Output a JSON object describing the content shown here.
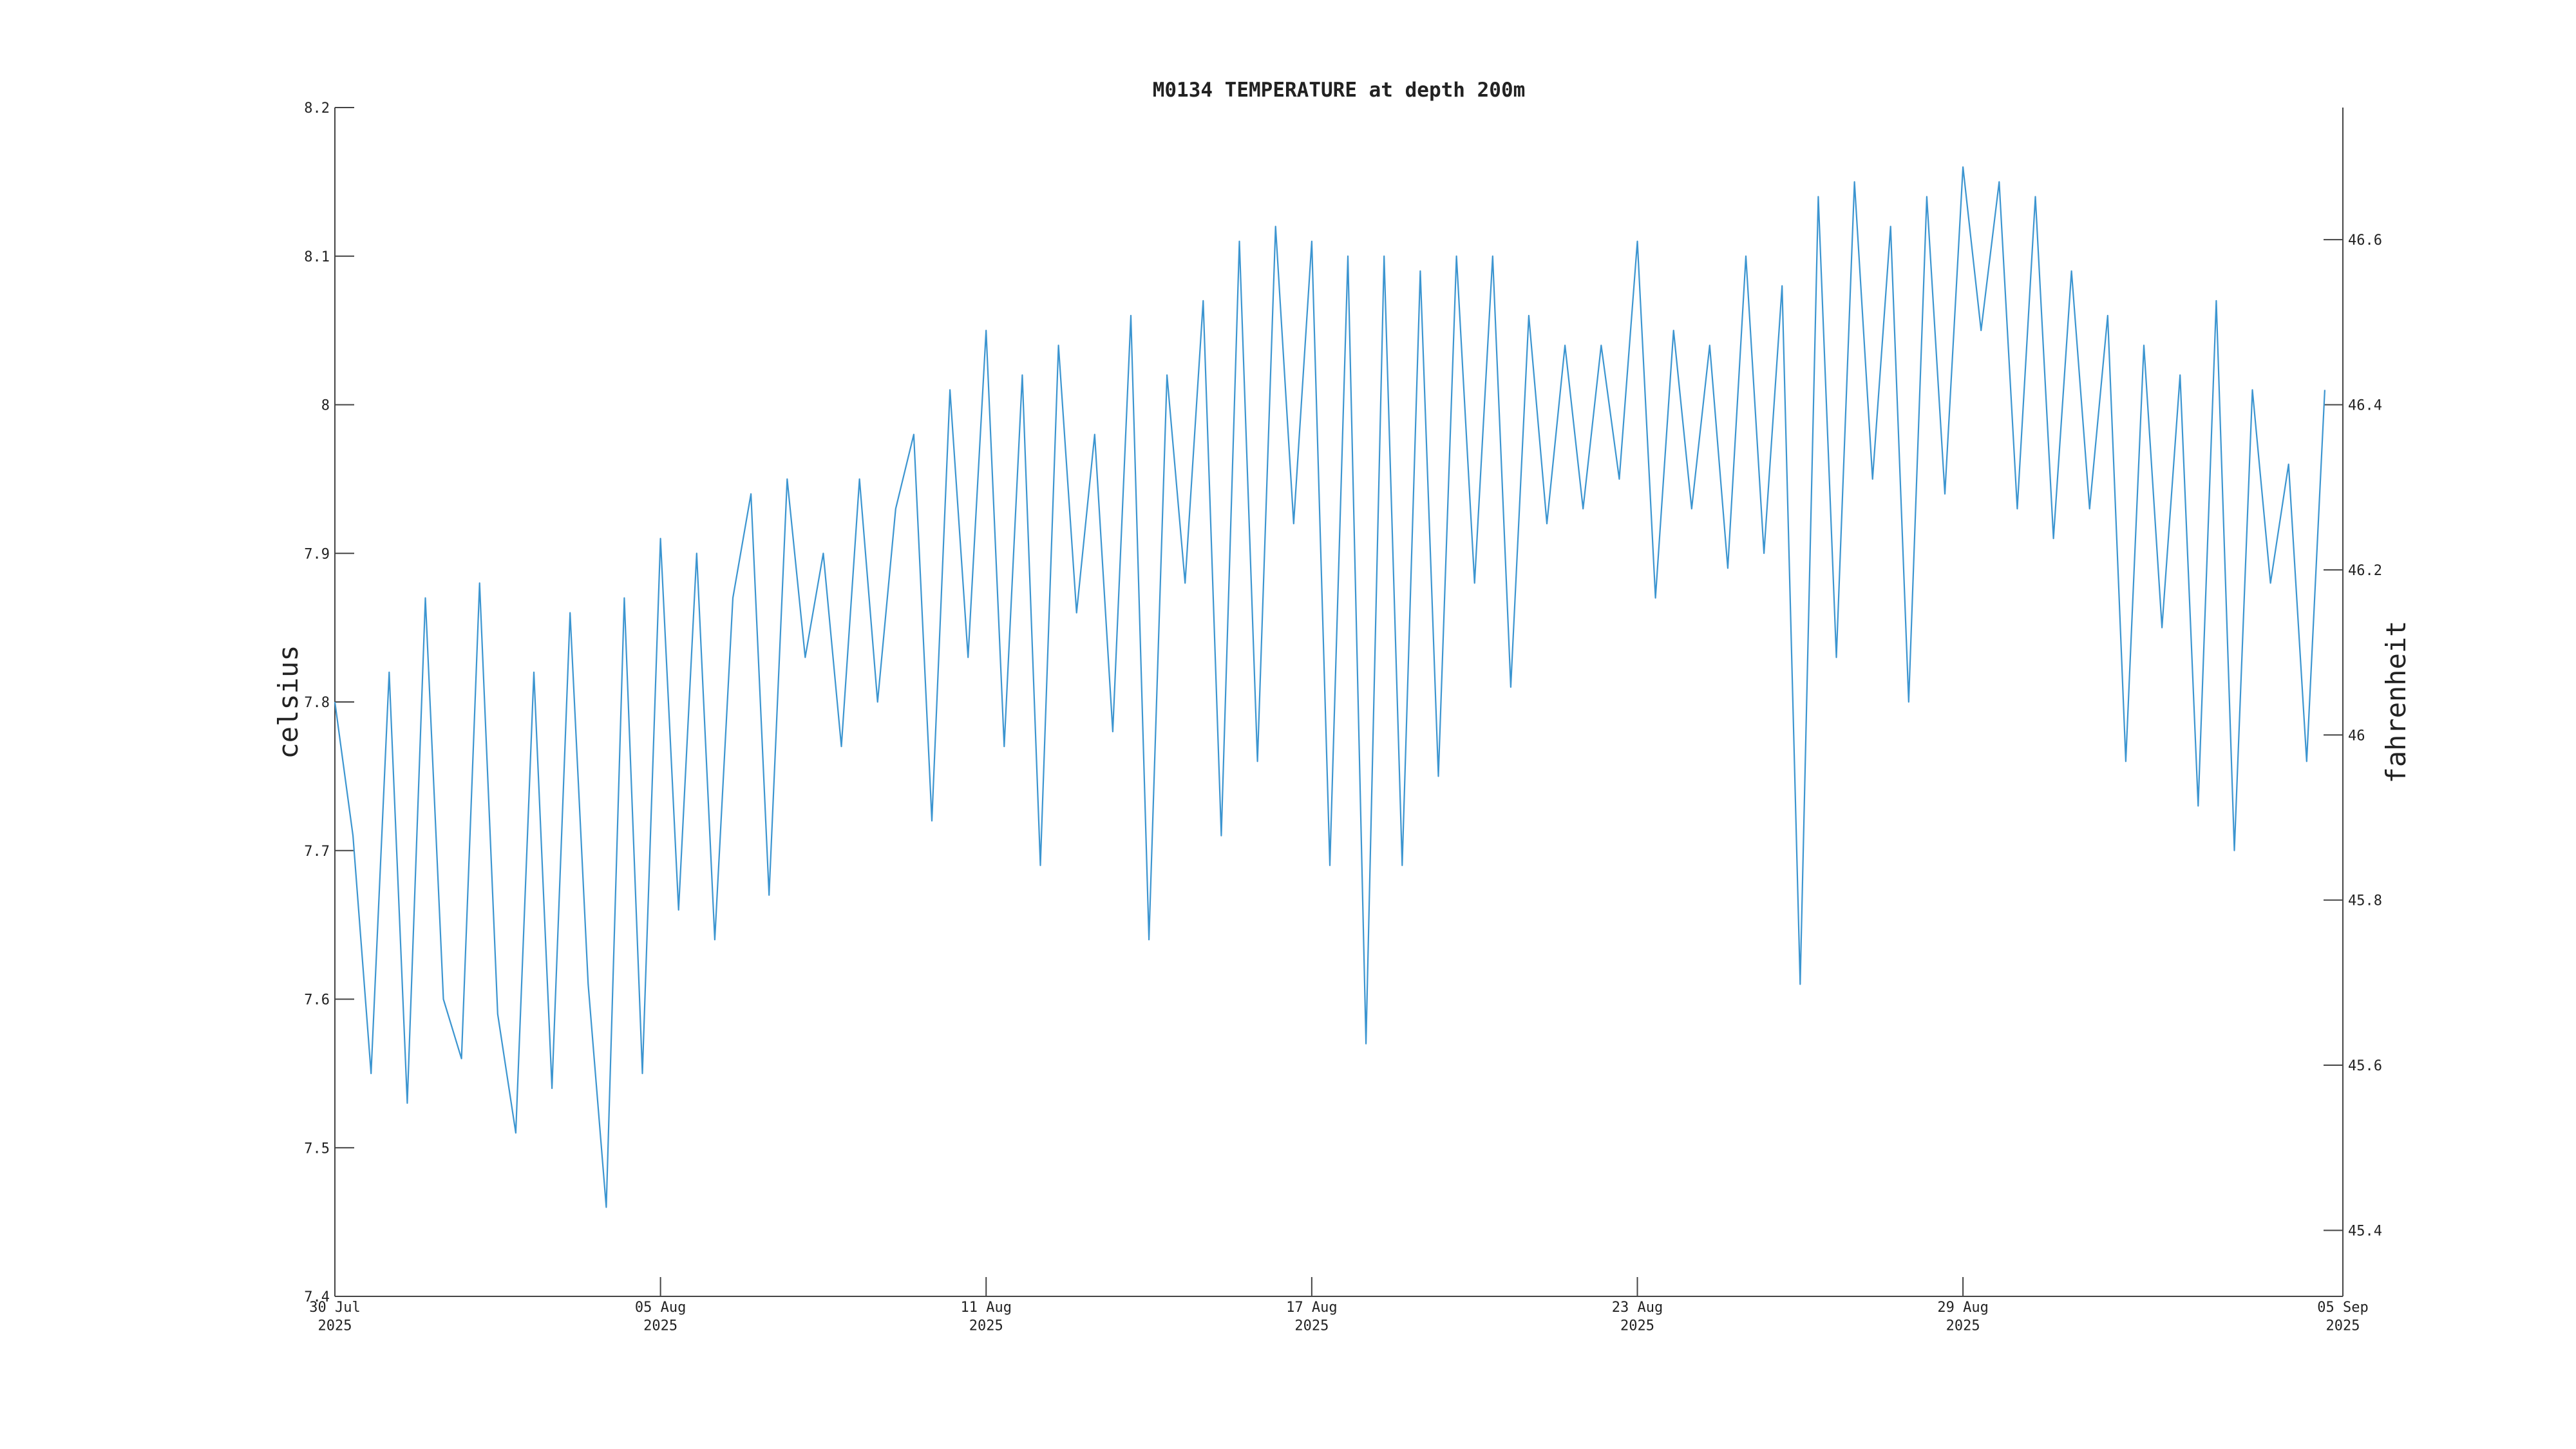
{
  "chart_data": {
    "type": "line",
    "title": "M0134 TEMPERATURE at depth 200m",
    "y_label": "celsius",
    "y2_label": "fahrenheit",
    "x": [
      "2025-07-30T00:00",
      "2025-07-30T08:00",
      "2025-07-30T16:00",
      "2025-07-31T00:00",
      "2025-07-31T08:00",
      "2025-07-31T16:00",
      "2025-08-01T00:00",
      "2025-08-01T08:00",
      "2025-08-01T16:00",
      "2025-08-02T00:00",
      "2025-08-02T08:00",
      "2025-08-02T16:00",
      "2025-08-03T00:00",
      "2025-08-03T08:00",
      "2025-08-03T16:00",
      "2025-08-04T00:00",
      "2025-08-04T08:00",
      "2025-08-04T16:00",
      "2025-08-05T00:00",
      "2025-08-05T08:00",
      "2025-08-05T16:00",
      "2025-08-06T00:00",
      "2025-08-06T08:00",
      "2025-08-06T16:00",
      "2025-08-07T00:00",
      "2025-08-07T08:00",
      "2025-08-07T16:00",
      "2025-08-08T00:00",
      "2025-08-08T08:00",
      "2025-08-08T16:00",
      "2025-08-09T00:00",
      "2025-08-09T08:00",
      "2025-08-09T16:00",
      "2025-08-10T00:00",
      "2025-08-10T08:00",
      "2025-08-10T16:00",
      "2025-08-11T00:00",
      "2025-08-11T08:00",
      "2025-08-11T16:00",
      "2025-08-12T00:00",
      "2025-08-12T08:00",
      "2025-08-12T16:00",
      "2025-08-13T00:00",
      "2025-08-13T08:00",
      "2025-08-13T16:00",
      "2025-08-14T00:00",
      "2025-08-14T08:00",
      "2025-08-14T16:00",
      "2025-08-15T00:00",
      "2025-08-15T08:00",
      "2025-08-15T16:00",
      "2025-08-16T00:00",
      "2025-08-16T08:00",
      "2025-08-16T16:00",
      "2025-08-17T00:00",
      "2025-08-17T08:00",
      "2025-08-17T16:00",
      "2025-08-18T00:00",
      "2025-08-18T08:00",
      "2025-08-18T16:00",
      "2025-08-19T00:00",
      "2025-08-19T08:00",
      "2025-08-19T16:00",
      "2025-08-20T00:00",
      "2025-08-20T08:00",
      "2025-08-20T16:00",
      "2025-08-21T00:00",
      "2025-08-21T08:00",
      "2025-08-21T16:00",
      "2025-08-22T00:00",
      "2025-08-22T08:00",
      "2025-08-22T16:00",
      "2025-08-23T00:00",
      "2025-08-23T08:00",
      "2025-08-23T16:00",
      "2025-08-24T00:00",
      "2025-08-24T08:00",
      "2025-08-24T16:00",
      "2025-08-25T00:00",
      "2025-08-25T08:00",
      "2025-08-25T16:00",
      "2025-08-26T00:00",
      "2025-08-26T08:00",
      "2025-08-26T16:00",
      "2025-08-27T00:00",
      "2025-08-27T08:00",
      "2025-08-27T16:00",
      "2025-08-28T00:00",
      "2025-08-28T08:00",
      "2025-08-28T16:00",
      "2025-08-29T00:00",
      "2025-08-29T08:00",
      "2025-08-29T16:00",
      "2025-08-30T00:00",
      "2025-08-30T08:00",
      "2025-08-30T16:00",
      "2025-08-31T00:00",
      "2025-08-31T08:00",
      "2025-08-31T16:00",
      "2025-09-01T00:00",
      "2025-09-01T08:00",
      "2025-09-01T16:00",
      "2025-09-02T00:00",
      "2025-09-02T08:00",
      "2025-09-02T16:00",
      "2025-09-03T00:00",
      "2025-09-03T08:00",
      "2025-09-03T16:00",
      "2025-09-04T00:00",
      "2025-09-04T08:00",
      "2025-09-04T16:00"
    ],
    "series": [
      {
        "color": "#3c95d0",
        "values": [
          7.8,
          7.71,
          7.55,
          7.82,
          7.53,
          7.87,
          7.6,
          7.56,
          7.88,
          7.59,
          7.51,
          7.82,
          7.54,
          7.86,
          7.61,
          7.46,
          7.87,
          7.55,
          7.91,
          7.66,
          7.9,
          7.64,
          7.87,
          7.94,
          7.67,
          7.95,
          7.83,
          7.9,
          7.77,
          7.95,
          7.8,
          7.93,
          7.98,
          7.72,
          8.01,
          7.83,
          8.05,
          7.77,
          8.02,
          7.69,
          8.04,
          7.86,
          7.98,
          7.78,
          8.06,
          7.64,
          8.02,
          7.88,
          8.07,
          7.71,
          8.11,
          7.76,
          8.12,
          7.92,
          8.11,
          7.69,
          8.1,
          7.57,
          8.1,
          7.69,
          8.09,
          7.75,
          8.1,
          7.88,
          8.1,
          7.81,
          8.06,
          7.92,
          8.04,
          7.93,
          8.04,
          7.95,
          8.11,
          7.87,
          8.05,
          7.93,
          8.04,
          7.89,
          8.1,
          7.9,
          8.08,
          7.61,
          8.14,
          7.83,
          8.15,
          7.95,
          8.12,
          7.8,
          8.14,
          7.94,
          8.16,
          8.05,
          8.15,
          7.93,
          8.14,
          7.91,
          8.09,
          7.93,
          8.06,
          7.76,
          8.04,
          7.85,
          8.02,
          7.73,
          8.07,
          7.7,
          8.01,
          7.88,
          7.96,
          7.76,
          8.01
        ]
      }
    ],
    "xlim": [
      "2025-07-30T00:00",
      "2025-09-05T00:00"
    ],
    "xticks": [
      {
        "value": "2025-07-30T00:00",
        "label": "30 Jul\n2025"
      },
      {
        "value": "2025-08-05T00:00",
        "label": "05 Aug\n2025"
      },
      {
        "value": "2025-08-11T00:00",
        "label": "11 Aug\n2025"
      },
      {
        "value": "2025-08-17T00:00",
        "label": "17 Aug\n2025"
      },
      {
        "value": "2025-08-23T00:00",
        "label": "23 Aug\n2025"
      },
      {
        "value": "2025-08-29T00:00",
        "label": "29 Aug\n2025"
      },
      {
        "value": "2025-09-05T00:00",
        "label": "05 Sep\n2025"
      }
    ],
    "ylim": [
      7.4,
      8.2
    ],
    "yticks": [
      7.4,
      7.5,
      7.6,
      7.7,
      7.8,
      7.9,
      8,
      8.1,
      8.2
    ],
    "y2lim": [
      45.32,
      46.76
    ],
    "y2ticks": [
      45.4,
      45.6,
      45.8,
      46,
      46.2,
      46.4,
      46.6
    ],
    "grid": false
  }
}
